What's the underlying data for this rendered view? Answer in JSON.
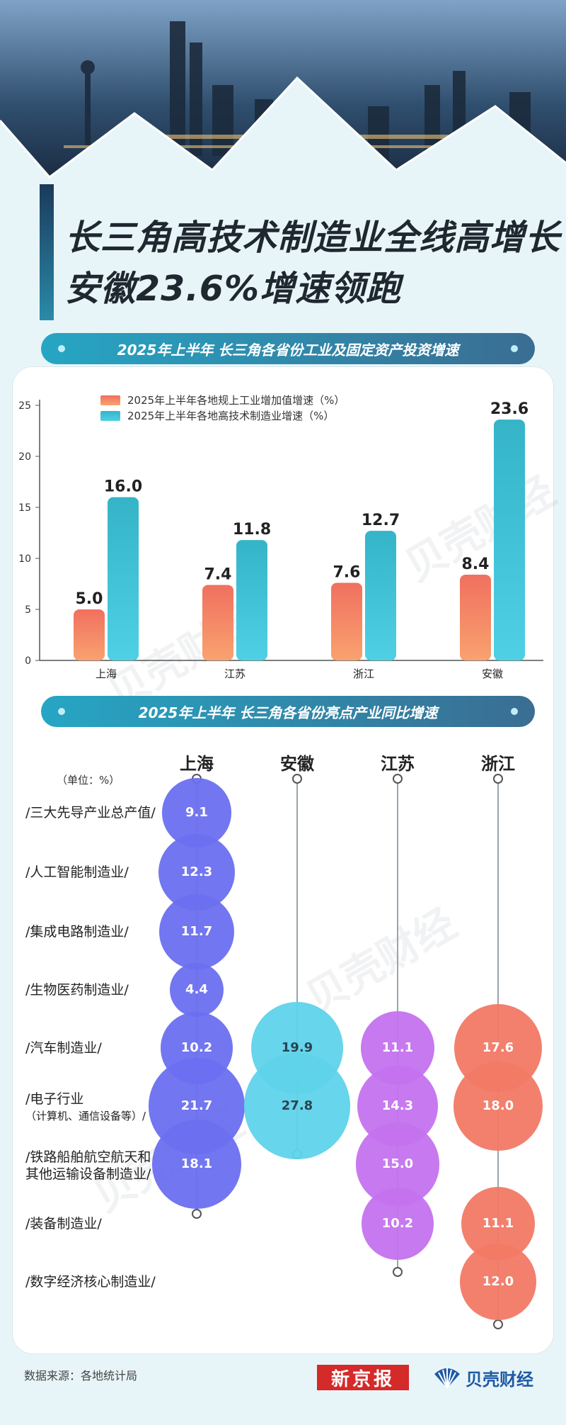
{
  "title": {
    "line1": "长三角高技术制造业全线高增长",
    "line2": "安徽23.6%增速领跑"
  },
  "section1_title": "2025年上半年 长三角各省份工业及固定资产投资增速",
  "section2_title": "2025年上半年 长三角各省份亮点产业同比增速",
  "watermark": "贝壳财经",
  "chart_data": [
    {
      "type": "bar",
      "categories": [
        "上海",
        "江苏",
        "浙江",
        "安徽"
      ],
      "series": [
        {
          "name": "2025年上半年各地规上工业增加值增速（%）",
          "values": [
            5.0,
            7.4,
            7.6,
            8.4
          ],
          "color": "#f07a62"
        },
        {
          "name": "2025年上半年各地高技术制造业增速（%）",
          "values": [
            16.0,
            11.8,
            12.7,
            23.6
          ],
          "color": "#3cc3d3"
        }
      ],
      "value_labels": [
        [
          "5.0",
          "7.4",
          "7.6",
          "8.4"
        ],
        [
          "16.0",
          "11.8",
          "12.7",
          "23.6"
        ]
      ],
      "ylim": [
        0,
        25
      ],
      "yticks": [
        "0",
        "5",
        "10",
        "15",
        "20",
        "25"
      ],
      "legend": "top-left",
      "grid": false
    },
    {
      "type": "bubble",
      "unit_label": "（单位：%）",
      "regions": [
        "上海",
        "安徽",
        "江苏",
        "浙江"
      ],
      "region_colors": [
        "#6b6ff0",
        "#5fd3ea",
        "#c572ef",
        "#f27a66"
      ],
      "rows": [
        {
          "label": "/三大先导产业总产值/",
          "sub": ""
        },
        {
          "label": "/人工智能制造业/",
          "sub": ""
        },
        {
          "label": "/集成电路制造业/",
          "sub": ""
        },
        {
          "label": "/生物医药制造业/",
          "sub": ""
        },
        {
          "label": "/汽车制造业/",
          "sub": ""
        },
        {
          "label": "/电子行业",
          "sub": "（计算机、通信设备等）/"
        },
        {
          "label": "/铁路船舶航空航天和",
          "sub": "其他运输设备制造业/"
        },
        {
          "label": "/装备制造业/",
          "sub": ""
        },
        {
          "label": "/数字经济核心制造业/",
          "sub": ""
        }
      ],
      "values": [
        [
          "9.1",
          null,
          null,
          null
        ],
        [
          "12.3",
          null,
          null,
          null
        ],
        [
          "11.7",
          null,
          null,
          null
        ],
        [
          "4.4",
          null,
          null,
          null
        ],
        [
          "10.2",
          "19.9",
          "11.1",
          "17.6"
        ],
        [
          "21.7",
          "27.8",
          "14.3",
          "18.0"
        ],
        [
          "18.1",
          null,
          "15.0",
          null
        ],
        [
          null,
          null,
          "10.2",
          "11.1"
        ],
        [
          null,
          null,
          null,
          "12.0"
        ]
      ]
    }
  ],
  "footer": {
    "source": "数据来源：各地统计局",
    "logo1": "新京报",
    "logo2": "贝壳财经"
  }
}
